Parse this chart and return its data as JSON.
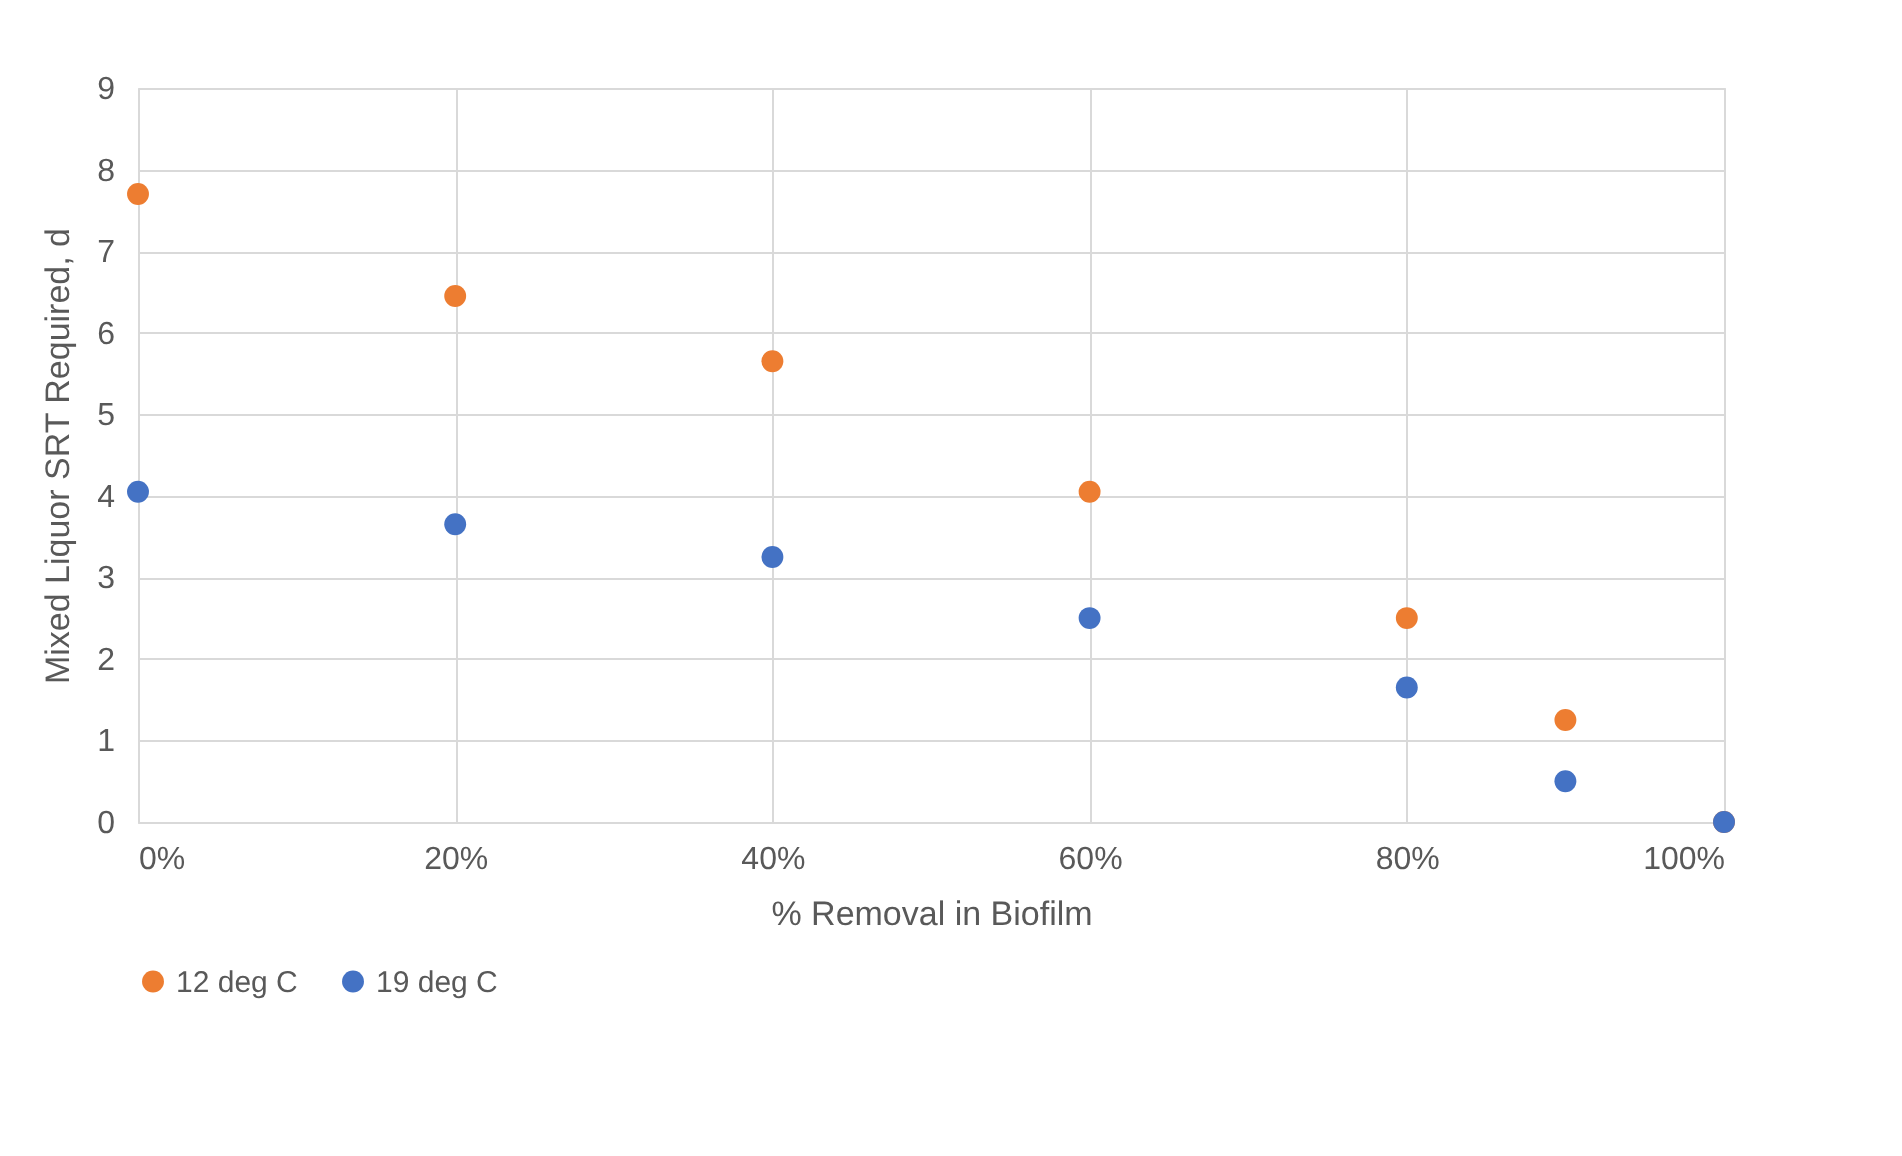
{
  "chart_data": {
    "type": "scatter",
    "xlabel": "% Removal in Biofilm",
    "ylabel": "Mixed Liquor SRT Required, d",
    "x": [
      0,
      20,
      40,
      60,
      80,
      90,
      100
    ],
    "series": [
      {
        "name": "12 deg C",
        "color": "#ed7d31",
        "values": [
          7.7,
          6.45,
          5.65,
          4.05,
          2.5,
          1.25,
          0
        ]
      },
      {
        "name": "19 deg C",
        "color": "#4472c4",
        "values": [
          4.05,
          3.65,
          3.25,
          2.5,
          1.65,
          0.5,
          0
        ]
      }
    ],
    "xlim": [
      0,
      100
    ],
    "xticks": [
      {
        "value": 0,
        "label": "0%"
      },
      {
        "value": 20,
        "label": "20%"
      },
      {
        "value": 40,
        "label": "40%"
      },
      {
        "value": 60,
        "label": "60%"
      },
      {
        "value": 80,
        "label": "80%"
      },
      {
        "value": 100,
        "label": "100%"
      }
    ],
    "ylim": [
      0,
      9
    ],
    "yticks": [
      0,
      1,
      2,
      3,
      4,
      5,
      6,
      7,
      8,
      9
    ],
    "grid": true,
    "legend": "bottom",
    "marker": "circle"
  }
}
